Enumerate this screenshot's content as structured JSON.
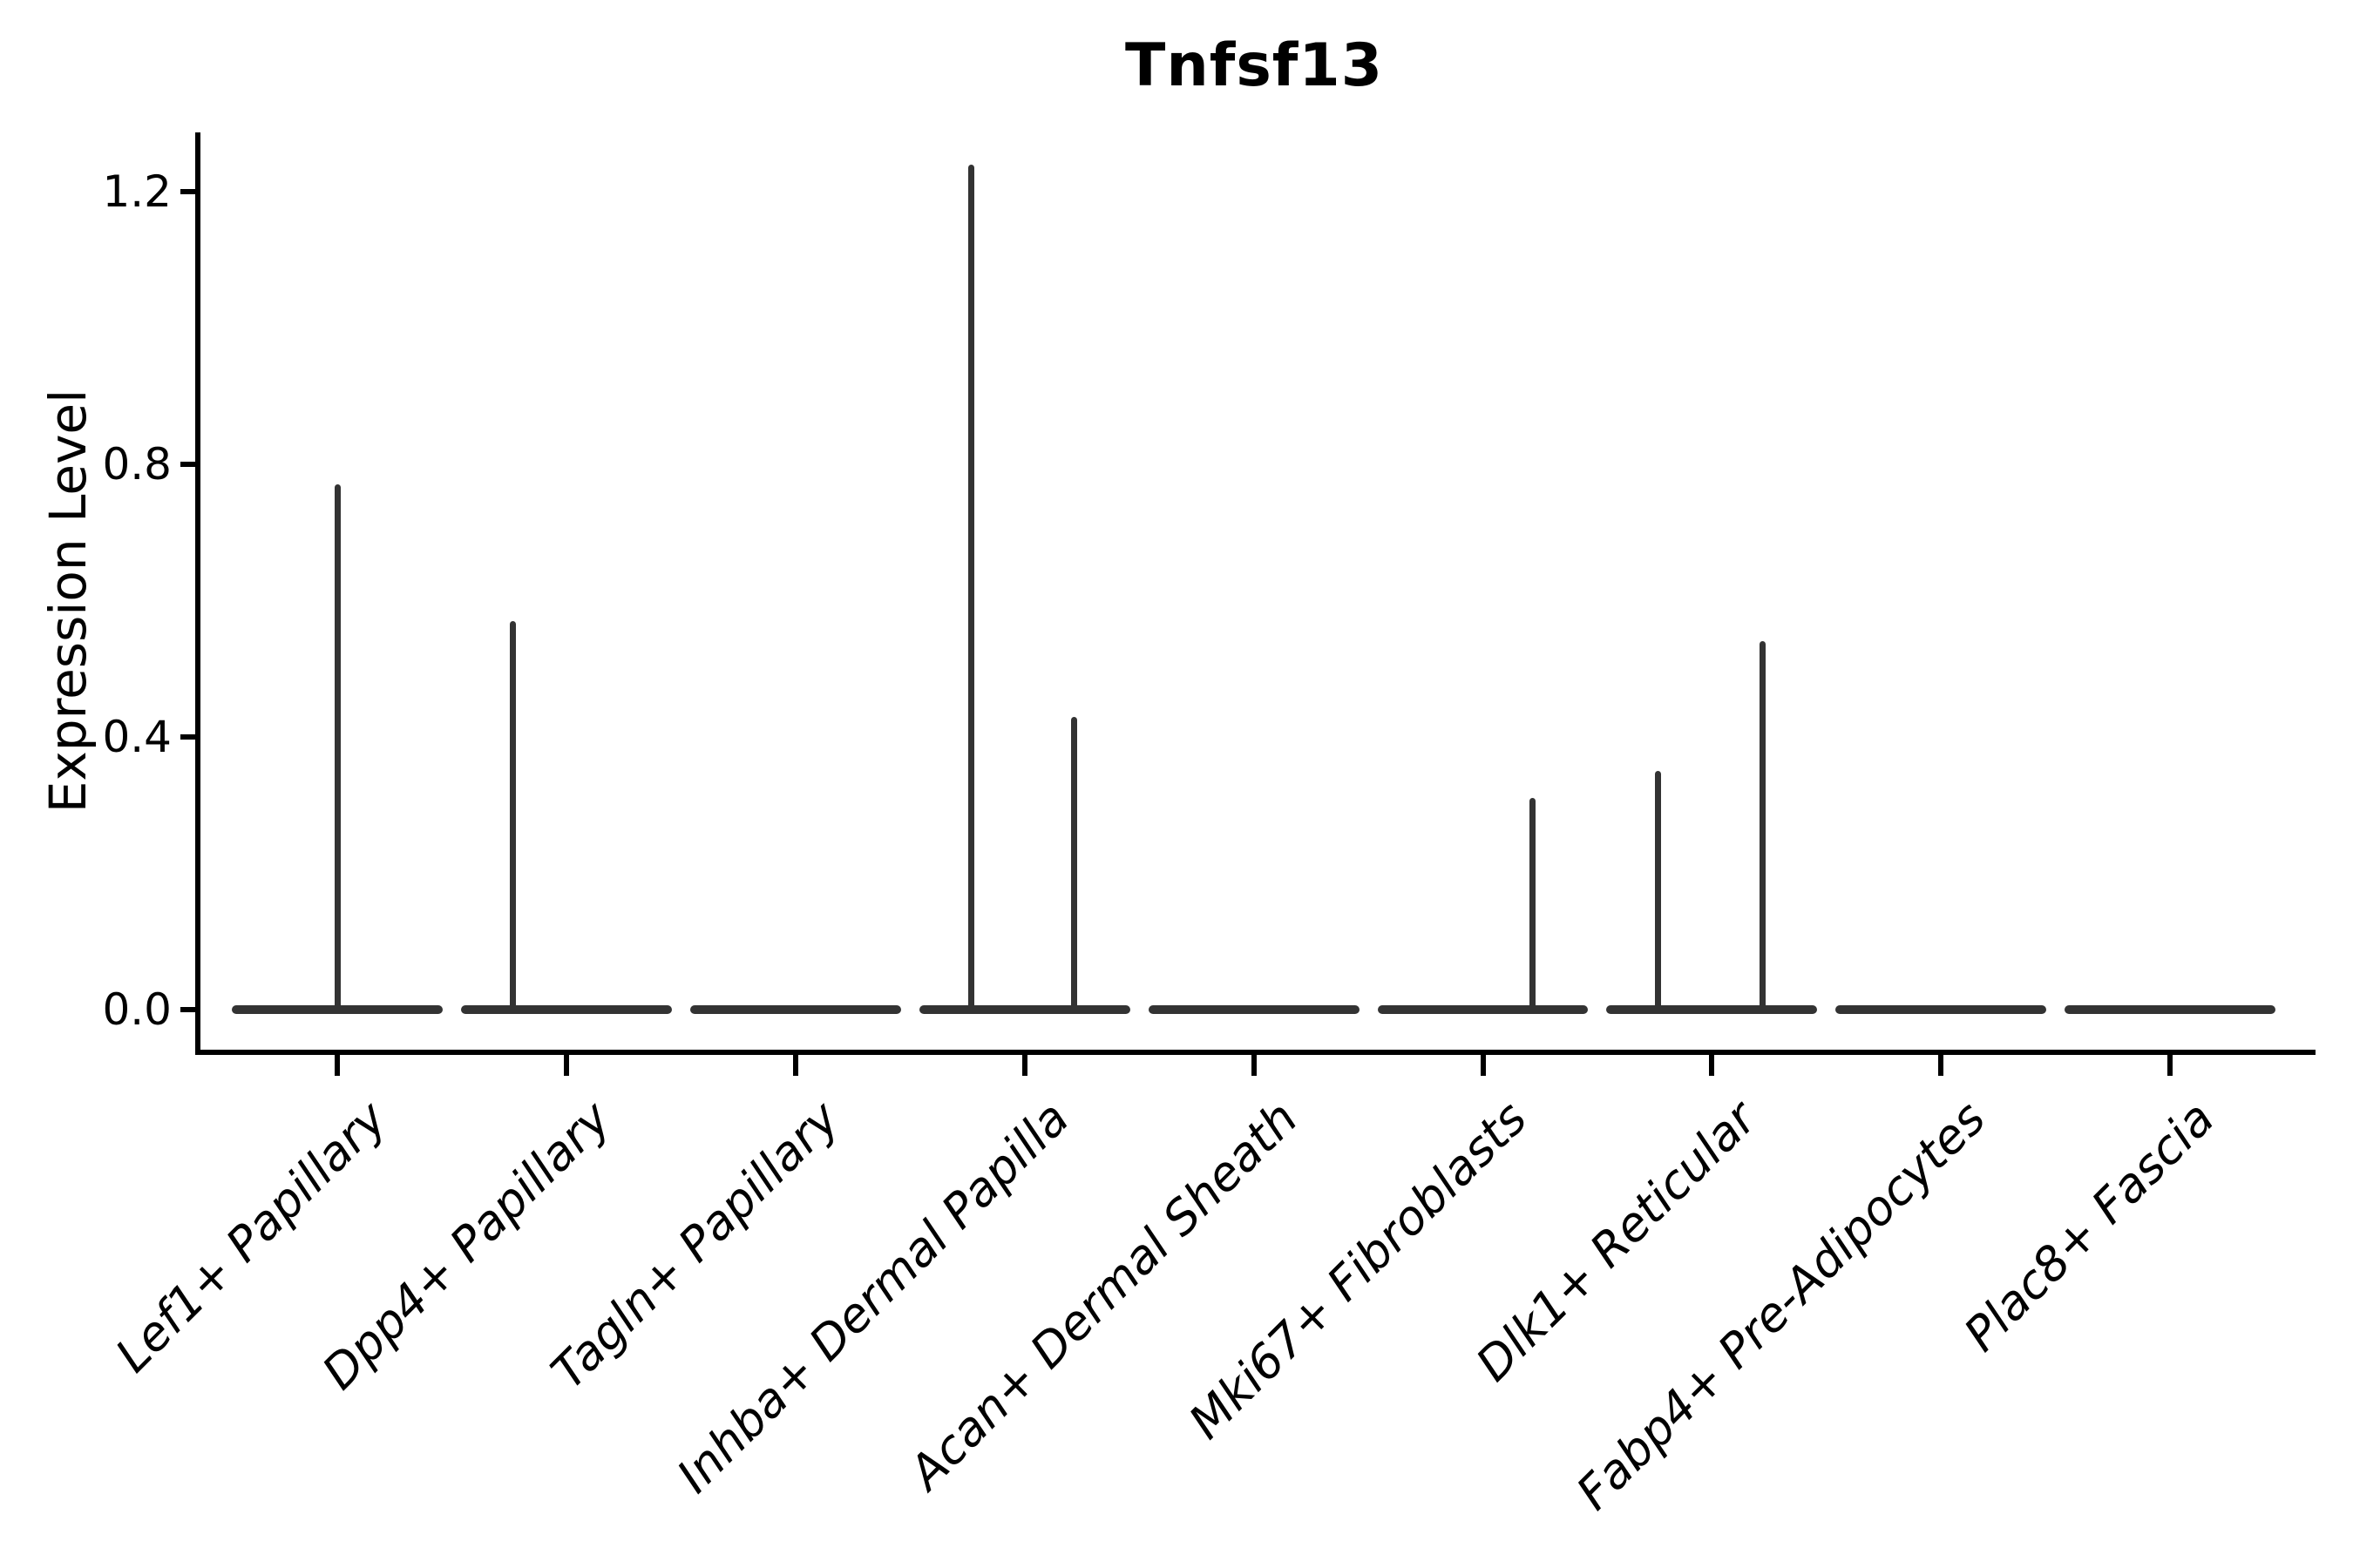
{
  "title": "Tnfsf13",
  "y_axis": {
    "label": "Expression Level",
    "ticks": [
      "0.0",
      "0.4",
      "0.8",
      "1.2"
    ],
    "tick_values": [
      0.0,
      0.4,
      0.8,
      1.2
    ]
  },
  "x_axis": {
    "label": ""
  },
  "style": {
    "violin_color": "#333333",
    "axis_color": "#000000",
    "background": "#ffffff"
  },
  "chart_data": {
    "type": "violin",
    "title": "Tnfsf13",
    "xlabel": "",
    "ylabel": "Expression Level",
    "ylim": [
      -0.065,
      1.285
    ],
    "yticks": [
      0.0,
      0.4,
      0.8,
      1.2
    ],
    "grid": false,
    "legend": false,
    "violin_width_frac": 0.92,
    "categories": [
      "Lef1+ Papillary",
      "Dpp4+ Papillary",
      "Tagln+ Papillary",
      "Inhba+ Dermal Papilla",
      "Acan+ Dermal Sheath",
      "Mki67+ Fibroblasts",
      "Dlk1+ Reticular",
      "Fabp4+ Pre-Adipocytes",
      "Plac8+ Fascia"
    ],
    "series": [
      {
        "name": "Lef1+ Papillary",
        "base_value": 0.0,
        "spikes": [
          {
            "offset": 0.0,
            "value": 0.77
          }
        ]
      },
      {
        "name": "Dpp4+ Papillary",
        "base_value": 0.0,
        "spikes": [
          {
            "offset": -0.235,
            "value": 0.57
          }
        ]
      },
      {
        "name": "Tagln+ Papillary",
        "base_value": 0.0,
        "spikes": []
      },
      {
        "name": "Inhba+ Dermal Papilla",
        "base_value": 0.0,
        "spikes": [
          {
            "offset": -0.232,
            "value": 1.24
          },
          {
            "offset": 0.217,
            "value": 0.43
          }
        ]
      },
      {
        "name": "Acan+ Dermal Sheath",
        "base_value": 0.0,
        "spikes": []
      },
      {
        "name": "Mki67+ Fibroblasts",
        "base_value": 0.0,
        "spikes": [
          {
            "offset": 0.217,
            "value": 0.31
          }
        ]
      },
      {
        "name": "Dlk1+ Reticular",
        "base_value": 0.0,
        "spikes": [
          {
            "offset": -0.236,
            "value": 0.35
          },
          {
            "offset": 0.221,
            "value": 0.54
          }
        ]
      },
      {
        "name": "Fabp4+ Pre-Adipocytes",
        "base_value": 0.0,
        "spikes": []
      },
      {
        "name": "Plac8+ Fascia",
        "base_value": 0.0,
        "spikes": []
      }
    ]
  }
}
